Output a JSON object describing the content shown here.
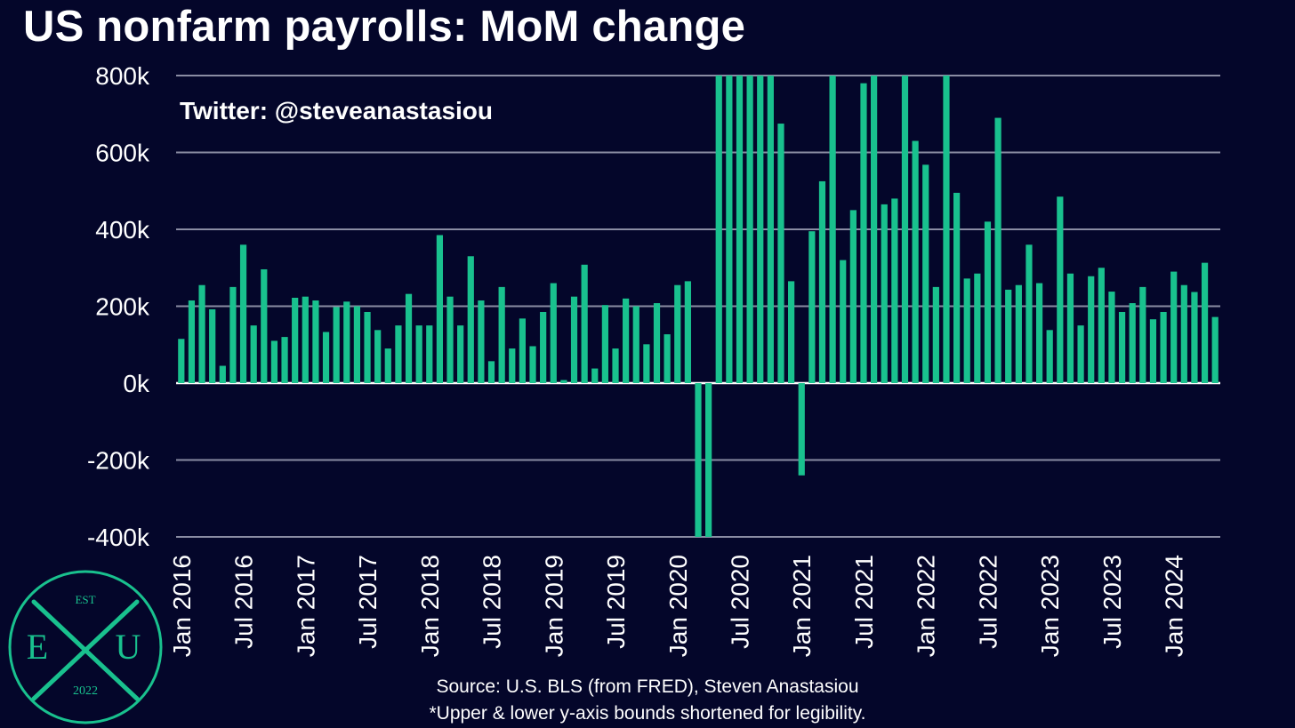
{
  "title": "US nonfarm payrolls: MoM change",
  "watermark": "Twitter: @steveanastasiou",
  "source": "Source: U.S. BLS (from FRED), Steven Anastasiou",
  "note": "*Upper & lower y-axis bounds shortened for legibility.",
  "logo": {
    "top": "EST",
    "left": "E",
    "right": "U",
    "bottom": "2022"
  },
  "colors": {
    "background": "#04062a",
    "bar": "#19c18e",
    "grid": "#8a8ca3",
    "text": "#ffffff",
    "logo": "#19c18e"
  },
  "chart_data": {
    "type": "bar",
    "title": "US nonfarm payrolls: MoM change",
    "xlabel": "",
    "ylabel": "",
    "ylim": [
      -400,
      800
    ],
    "y_unit": "k",
    "yticks": [
      "800k",
      "600k",
      "400k",
      "200k",
      "0k",
      "-200k",
      "-400k"
    ],
    "ytick_values": [
      800,
      600,
      400,
      200,
      0,
      -200,
      -400
    ],
    "xtick_labels": [
      "Jan 2016",
      "Jul 2016",
      "Jan 2017",
      "Jul 2017",
      "Jan 2018",
      "Jul 2018",
      "Jan 2019",
      "Jul 2019",
      "Jan 2020",
      "Jul 2020",
      "Jan 2021",
      "Jul 2021",
      "Jan 2022",
      "Jul 2022",
      "Jan 2023",
      "Jul 2023",
      "Jan 2024"
    ],
    "x_start": "Jan 2016",
    "grid": true,
    "series": [
      {
        "values": [
          115,
          215,
          255,
          192,
          45,
          250,
          360,
          150,
          296,
          110,
          120,
          222,
          225,
          215,
          133,
          198,
          212,
          200,
          185,
          138,
          90,
          150,
          232,
          150,
          150,
          385,
          225,
          150,
          330,
          215,
          57,
          250,
          90,
          168,
          96,
          185,
          260,
          8,
          225,
          308,
          38,
          203,
          90,
          220,
          200,
          101,
          208,
          127,
          255,
          265,
          -400,
          -400,
          800,
          800,
          800,
          800,
          800,
          800,
          675,
          265,
          -240,
          395,
          525,
          800,
          320,
          450,
          780,
          800,
          465,
          480,
          800,
          630,
          568,
          250,
          800,
          495,
          272,
          285,
          420,
          690,
          243,
          255,
          360,
          260,
          138,
          485,
          285,
          150,
          278,
          300,
          238,
          185,
          208,
          250,
          166,
          185,
          290,
          255,
          237,
          313,
          172
        ]
      }
    ]
  }
}
